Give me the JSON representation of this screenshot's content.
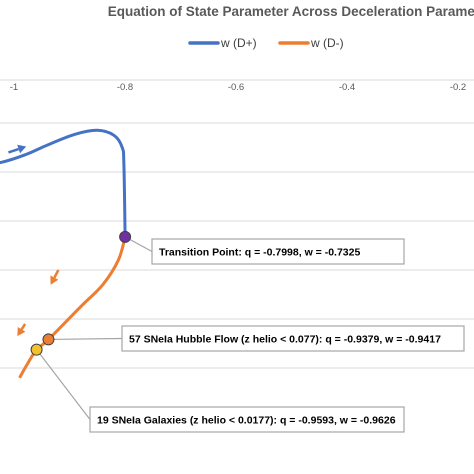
{
  "chart_data": {
    "type": "line",
    "title": "Equation of State Parameter Across Deceleration Parameter",
    "xlabel": "",
    "ylabel": "",
    "xlim": [
      -1.03,
      -0.18
    ],
    "ylim": [
      -1.02,
      -0.46
    ],
    "x_ticks": [
      -1,
      -0.8,
      -0.6,
      -0.4,
      -0.2
    ],
    "x_tick_labels": [
      "-1",
      "-0.8",
      "-0.6",
      "-0.4",
      "-0.2"
    ],
    "y_gridlines": [
      -1.0,
      -0.9,
      -0.8,
      -0.7,
      -0.6,
      -0.5
    ],
    "grid": true,
    "legend_position": "top-center",
    "series": [
      {
        "name": "w (D+)",
        "color": "#4472C4",
        "points": [
          [
            -1.05,
            -0.58
          ],
          [
            -1.03,
            -0.582
          ],
          [
            -0.98,
            -0.565
          ],
          [
            -0.94,
            -0.545
          ],
          [
            -0.89,
            -0.523
          ],
          [
            -0.85,
            -0.515
          ],
          [
            -0.82,
            -0.525
          ],
          [
            -0.805,
            -0.55
          ],
          [
            -0.802,
            -0.585
          ],
          [
            -0.7998,
            -0.7325
          ]
        ]
      },
      {
        "name": "w (D-)",
        "color": "#ED7D31",
        "points": [
          [
            -0.7998,
            -0.7325
          ],
          [
            -0.812,
            -0.78
          ],
          [
            -0.84,
            -0.83
          ],
          [
            -0.88,
            -0.875
          ],
          [
            -0.9379,
            -0.9417
          ],
          [
            -0.9593,
            -0.9626
          ],
          [
            -0.975,
            -0.99
          ],
          [
            -0.99,
            -1.02
          ]
        ]
      }
    ],
    "markers": [
      {
        "q": -0.7998,
        "w": -0.7325,
        "color": "#7030A0"
      },
      {
        "q": -0.9379,
        "w": -0.9417,
        "color": "#ED7D31"
      },
      {
        "q": -0.9593,
        "w": -0.9626,
        "color": "#F2C12E"
      }
    ],
    "direction_arrows": [
      {
        "q": -1.01,
        "w": -0.56,
        "dq": 0.032,
        "dw": 0.012,
        "color": "#4472C4"
      },
      {
        "q": -0.92,
        "w": -0.8,
        "dq": -0.014,
        "dw": -0.03,
        "color": "#ED7D31"
      },
      {
        "q": -0.98,
        "w": -0.91,
        "dq": -0.014,
        "dw": -0.025,
        "color": "#ED7D31"
      }
    ],
    "annotations": [
      {
        "text": "Transition Point: q = -0.7998, w = -0.7325",
        "marker": 0
      },
      {
        "text": "57 SNeIa Hubble Flow  (z helio < 0.077): q = -0.9379, w = -0.9417",
        "marker": 1
      },
      {
        "text": "19 SNeIa Galaxies (z helio < 0.0177): q = -0.9593, w = -0.9626",
        "marker": 2
      }
    ]
  }
}
